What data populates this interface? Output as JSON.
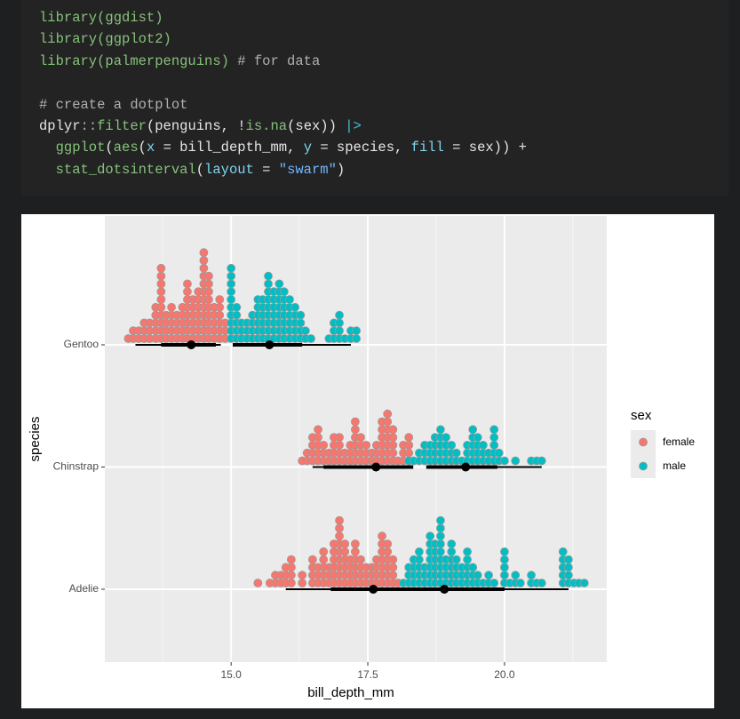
{
  "code": {
    "lines": [
      {
        "tokens": [
          {
            "text": "library(ggdist)",
            "color": "#86c17a"
          }
        ]
      },
      {
        "tokens": [
          {
            "text": "library(ggplot2)",
            "color": "#86c17a"
          }
        ]
      },
      {
        "tokens": [
          {
            "text": "library(palmerpenguins)",
            "color": "#86c17a"
          },
          {
            "text": " # for data",
            "color": "#b0b0b0"
          }
        ]
      },
      {
        "tokens": []
      },
      {
        "tokens": [
          {
            "text": "# create a dotplot",
            "color": "#b0b0b0"
          }
        ]
      },
      {
        "tokens": [
          {
            "text": "dplyr",
            "color": "#e6e6e6"
          },
          {
            "text": "::",
            "color": "#b0b0b0"
          },
          {
            "text": "filter",
            "color": "#86c17a"
          },
          {
            "text": "(penguins, ",
            "color": "#e6e6e6"
          },
          {
            "text": "!",
            "color": "#e6e6e6"
          },
          {
            "text": "is.na",
            "color": "#86c17a"
          },
          {
            "text": "(sex)) ",
            "color": "#e6e6e6"
          },
          {
            "text": "|>",
            "color": "#3fc1d0"
          }
        ]
      },
      {
        "tokens": [
          {
            "text": "  ggplot",
            "color": "#86c17a"
          },
          {
            "text": "(",
            "color": "#e6e6e6"
          },
          {
            "text": "aes",
            "color": "#86c17a"
          },
          {
            "text": "(",
            "color": "#e6e6e6"
          },
          {
            "text": "x",
            "color": "#7fd6f0"
          },
          {
            "text": " = bill_depth_mm, ",
            "color": "#e6e6e6"
          },
          {
            "text": "y",
            "color": "#7fd6f0"
          },
          {
            "text": " = species, ",
            "color": "#e6e6e6"
          },
          {
            "text": "fill",
            "color": "#7fd6f0"
          },
          {
            "text": " = sex)) +",
            "color": "#e6e6e6"
          }
        ]
      },
      {
        "tokens": [
          {
            "text": "  stat_dotsinterval",
            "color": "#86c17a"
          },
          {
            "text": "(",
            "color": "#e6e6e6"
          },
          {
            "text": "layout",
            "color": "#7fd6f0"
          },
          {
            "text": " = ",
            "color": "#e6e6e6"
          },
          {
            "text": "\"swarm\"",
            "color": "#6fb7ff"
          },
          {
            "text": ")",
            "color": "#e6e6e6"
          }
        ]
      }
    ]
  },
  "chart_data": {
    "type": "dotsinterval",
    "x_label": "bill_depth_mm",
    "y_label": "species",
    "legend_title": "sex",
    "categories": [
      "Adelie",
      "Chinstrap",
      "Gentoo"
    ],
    "xlim": [
      12.69,
      21.87
    ],
    "xticks": [
      {
        "value": 15,
        "label": "15.0"
      },
      {
        "value": 17.5,
        "label": "17.5"
      },
      {
        "value": 20,
        "label": "20.0"
      }
    ],
    "grid": true,
    "series": [
      {
        "name": "female",
        "color": "#f8766d",
        "groups": [
          {
            "dots": {
              "x": [
                15.49,
                15.71,
                15.81,
                15.91,
                16.0,
                16.1,
                16.3,
                16.49,
                16.59,
                16.69,
                16.79,
                16.88,
                16.98,
                17.08,
                17.18,
                17.27,
                17.37,
                17.47,
                17.57,
                17.66,
                17.76,
                17.86,
                17.96,
                18.05
              ],
              "counts": [
                1,
                1,
                2,
                2,
                3,
                4,
                2,
                4,
                3,
                5,
                3,
                6,
                9,
                6,
                4,
                6,
                4,
                3,
                3,
                4,
                7,
                6,
                4,
                1
              ]
            },
            "interval": {
              "median": 17.6,
              "inner": [
                16.82,
                18.38
              ],
              "outer": [
                16.0,
                18.38
              ]
            }
          },
          {
            "dots": {
              "x": [
                16.3,
                16.39,
                16.49,
                16.59,
                16.69,
                16.79,
                16.88,
                16.98,
                17.08,
                17.18,
                17.27,
                17.37,
                17.47,
                17.57,
                17.66,
                17.76,
                17.86,
                17.96,
                18.05,
                18.15,
                18.25
              ],
              "counts": [
                1,
                2,
                4,
                5,
                3,
                2,
                4,
                4,
                2,
                3,
                6,
                4,
                3,
                2,
                3,
                6,
                7,
                5,
                1,
                3,
                4
              ]
            },
            "interval": {
              "median": 17.65,
              "inner": [
                16.69,
                18.33
              ],
              "outer": [
                16.49,
                18.33
              ]
            }
          },
          {
            "dots": {
              "x": [
                13.12,
                13.21,
                13.31,
                13.41,
                13.51,
                13.62,
                13.72,
                13.81,
                13.91,
                14.01,
                14.11,
                14.2,
                14.3,
                14.4,
                14.5,
                14.59,
                14.69,
                14.79,
                14.89
              ],
              "counts": [
                1,
                2,
                2,
                3,
                3,
                5,
                10,
                4,
                5,
                4,
                5,
                8,
                6,
                7,
                12,
                9,
                5,
                6,
                3
              ]
            },
            "interval": {
              "median": 14.27,
              "inner": [
                13.72,
                14.72
              ],
              "outer": [
                13.25,
                14.81
              ]
            }
          }
        ]
      },
      {
        "name": "male",
        "color": "#00bfc4",
        "groups": [
          {
            "dots": {
              "x": [
                18.15,
                18.25,
                18.34,
                18.44,
                18.54,
                18.64,
                18.73,
                18.83,
                18.93,
                19.03,
                19.12,
                19.22,
                19.32,
                19.42,
                19.51,
                19.61,
                19.71,
                19.81,
                20.0,
                20.1,
                20.2,
                20.29,
                20.49,
                20.59,
                20.68,
                21.07,
                21.17,
                21.27,
                21.36,
                21.46
              ],
              "counts": [
                1,
                3,
                4,
                5,
                3,
                7,
                6,
                9,
                4,
                6,
                4,
                3,
                5,
                3,
                2,
                1,
                2,
                1,
                5,
                1,
                2,
                1,
                2,
                1,
                1,
                5,
                4,
                1,
                1,
                1
              ]
            },
            "interval": {
              "median": 18.9,
              "inner": [
                18.17,
                20.0
              ],
              "outer": [
                18.17,
                21.17
              ]
            }
          },
          {
            "dots": {
              "x": [
                18.25,
                18.34,
                18.44,
                18.54,
                18.64,
                18.73,
                18.83,
                18.93,
                19.03,
                19.12,
                19.22,
                19.32,
                19.42,
                19.51,
                19.61,
                19.71,
                19.81,
                19.9,
                20.0,
                20.2,
                20.49,
                20.59,
                20.68
              ],
              "counts": [
                1,
                1,
                2,
                3,
                3,
                4,
                5,
                4,
                3,
                2,
                1,
                3,
                5,
                4,
                3,
                2,
                5,
                2,
                1,
                1,
                1,
                1,
                1
              ]
            },
            "interval": {
              "median": 19.29,
              "inner": [
                18.57,
                19.87
              ],
              "outer": [
                18.57,
                20.68
              ]
            }
          },
          {
            "dots": {
              "x": [
                15.0,
                15.1,
                15.19,
                15.29,
                15.39,
                15.49,
                15.58,
                15.68,
                15.78,
                15.88,
                15.97,
                16.07,
                16.17,
                16.27,
                16.36,
                16.46,
                16.79,
                16.88,
                16.98,
                17.08,
                17.19,
                17.29
              ],
              "counts": [
                10,
                5,
                3,
                3,
                4,
                6,
                6,
                9,
                7,
                8,
                7,
                6,
                5,
                4,
                2,
                1,
                1,
                3,
                4,
                1,
                2,
                2
              ]
            },
            "interval": {
              "median": 15.7,
              "inner": [
                15.03,
                16.3
              ],
              "outer": [
                15.03,
                17.19
              ]
            }
          }
        ]
      }
    ]
  }
}
